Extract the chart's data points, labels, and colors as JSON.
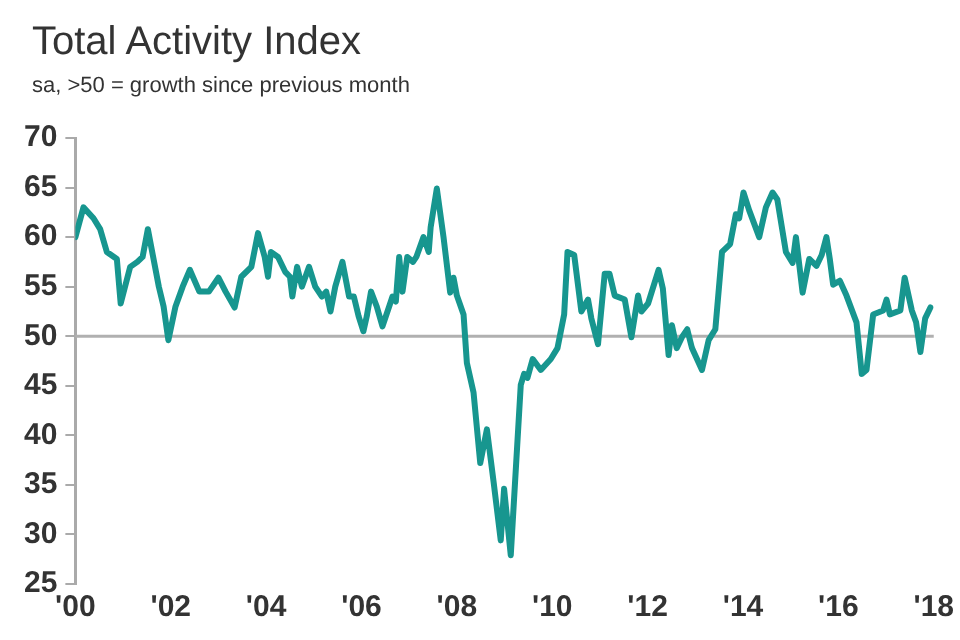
{
  "chart_data": {
    "type": "line",
    "title": "Total Activity Index",
    "subtitle": "sa, >50 = growth since previous month",
    "xlim": [
      2000,
      2018
    ],
    "xticks": [
      {
        "value": 2000,
        "label": "'00"
      },
      {
        "value": 2002,
        "label": "'02"
      },
      {
        "value": 2004,
        "label": "'04"
      },
      {
        "value": 2006,
        "label": "'06"
      },
      {
        "value": 2008,
        "label": "'08"
      },
      {
        "value": 2010,
        "label": "'10"
      },
      {
        "value": 2012,
        "label": "'12"
      },
      {
        "value": 2014,
        "label": "'14"
      },
      {
        "value": 2016,
        "label": "'16"
      },
      {
        "value": 2018,
        "label": "'18"
      }
    ],
    "ylim": [
      25,
      70
    ],
    "yticks": [
      25,
      30,
      35,
      40,
      45,
      50,
      55,
      60,
      65,
      70
    ],
    "grid": false,
    "legend": false,
    "marker": "none",
    "line_style": "solid",
    "ref_lines": [
      {
        "axis": "y",
        "value": 50,
        "color": "#b0b0b0"
      }
    ],
    "series": [
      {
        "color": "#17968f",
        "x": [
          2000.0,
          2000.17,
          2000.38,
          2000.52,
          2000.66,
          2000.87,
          2000.95,
          2001.15,
          2001.3,
          2001.41,
          2001.52,
          2001.75,
          2001.85,
          2001.95,
          2002.1,
          2002.25,
          2002.4,
          2002.6,
          2002.8,
          2003.0,
          2003.15,
          2003.34,
          2003.48,
          2003.69,
          2003.83,
          2003.97,
          2004.04,
          2004.1,
          2004.25,
          2004.4,
          2004.5,
          2004.55,
          2004.65,
          2004.75,
          2004.9,
          2005.03,
          2005.17,
          2005.26,
          2005.35,
          2005.45,
          2005.6,
          2005.74,
          2005.84,
          2005.94,
          2006.04,
          2006.11,
          2006.2,
          2006.32,
          2006.44,
          2006.58,
          2006.65,
          2006.72,
          2006.79,
          2006.86,
          2006.96,
          2007.08,
          2007.15,
          2007.3,
          2007.41,
          2007.45,
          2007.58,
          2007.72,
          2007.86,
          2007.93,
          2008.0,
          2008.14,
          2008.21,
          2008.35,
          2008.49,
          2008.63,
          2008.77,
          2008.92,
          2008.99,
          2009.13,
          2009.34,
          2009.41,
          2009.48,
          2009.59,
          2009.76,
          2009.97,
          2010.11,
          2010.25,
          2010.32,
          2010.46,
          2010.61,
          2010.75,
          2010.82,
          2010.96,
          2011.1,
          2011.2,
          2011.31,
          2011.52,
          2011.66,
          2011.8,
          2011.87,
          2012.01,
          2012.23,
          2012.32,
          2012.44,
          2012.51,
          2012.61,
          2012.72,
          2012.83,
          2012.93,
          2013.14,
          2013.28,
          2013.42,
          2013.56,
          2013.73,
          2013.85,
          2013.92,
          2014.01,
          2014.13,
          2014.34,
          2014.48,
          2014.62,
          2014.72,
          2014.9,
          2015.04,
          2015.11,
          2015.25,
          2015.39,
          2015.54,
          2015.65,
          2015.75,
          2015.82,
          2015.89,
          2016.03,
          2016.17,
          2016.38,
          2016.49,
          2016.59,
          2016.73,
          2016.94,
          2017.01,
          2017.08,
          2017.3,
          2017.39,
          2017.54,
          2017.63,
          2017.72,
          2017.82,
          2017.93
        ],
        "values": [
          60.0,
          63.0,
          61.9,
          60.8,
          58.5,
          57.8,
          53.3,
          57.0,
          57.5,
          58.0,
          60.8,
          55.0,
          53.0,
          49.6,
          53.0,
          55.0,
          56.7,
          54.5,
          54.5,
          55.9,
          54.5,
          52.9,
          56.0,
          57.0,
          60.4,
          58.0,
          56.0,
          58.5,
          58.0,
          56.5,
          56.0,
          54.0,
          57.0,
          55.0,
          57.0,
          55.0,
          54.0,
          54.5,
          52.5,
          55.0,
          57.5,
          54.0,
          54.0,
          52.0,
          50.5,
          52.0,
          54.5,
          53.0,
          51.0,
          53.0,
          54.0,
          53.5,
          58.0,
          54.5,
          58.0,
          57.5,
          58.0,
          60.0,
          58.5,
          61.0,
          64.9,
          60.0,
          54.4,
          55.9,
          54.1,
          52.2,
          47.3,
          44.3,
          37.2,
          40.6,
          35.3,
          29.4,
          34.6,
          27.9,
          45.1,
          46.2,
          45.8,
          47.7,
          46.6,
          47.7,
          48.8,
          52.2,
          58.5,
          58.2,
          52.5,
          53.7,
          51.8,
          49.2,
          56.3,
          56.3,
          54.1,
          53.7,
          49.9,
          54.1,
          52.5,
          53.3,
          56.7,
          54.8,
          48.1,
          51.1,
          48.8,
          49.9,
          50.7,
          48.8,
          46.6,
          49.6,
          50.7,
          58.5,
          59.3,
          62.3,
          61.9,
          64.5,
          62.7,
          60.0,
          63.0,
          64.5,
          63.8,
          58.5,
          57.4,
          60.0,
          54.4,
          57.8,
          57.1,
          58.2,
          60.0,
          57.8,
          55.2,
          55.6,
          54.1,
          51.4,
          46.2,
          46.6,
          52.2,
          52.6,
          53.7,
          52.2,
          52.6,
          55.9,
          52.6,
          51.4,
          48.4,
          51.8,
          52.9
        ]
      }
    ]
  }
}
